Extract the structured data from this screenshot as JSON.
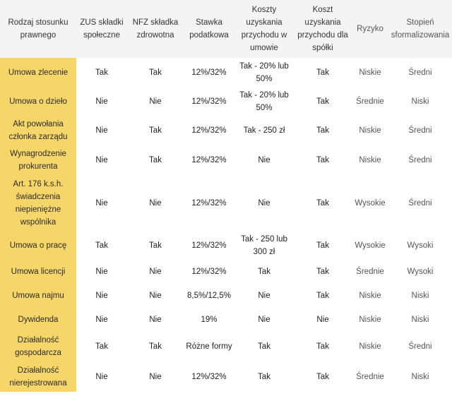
{
  "table": {
    "headers": [
      "Rodzaj stosunku prawnego",
      "ZUS składki społeczne",
      "NFZ składka zdrowotna",
      "Stawka podatkowa",
      "Koszty uzyskania przychodu w umowie",
      "Koszt uzyskania przychodu dla spółki",
      "Ryzyko",
      "Stopień sformalizowania"
    ],
    "rows": [
      [
        "Umowa zlecenie",
        "Tak",
        "Tak",
        "12%/32%",
        "Tak - 20% lub 50%",
        "Tak",
        "Niskie",
        "Średni"
      ],
      [
        "Umowa o dzieło",
        "Nie",
        "Nie",
        "12%/32%",
        "Tak - 20% lub 50%",
        "Tak",
        "Średnie",
        "Niski"
      ],
      [
        "Akt powołania członka zarządu",
        "Nie",
        "Tak",
        "12%/32%",
        "Tak - 250 zł",
        "Tak",
        "Niskie",
        "Średni"
      ],
      [
        "Wynagrodzenie prokurenta",
        "Nie",
        "Tak",
        "12%/32%",
        "Nie",
        "Tak",
        "Niskie",
        "Średni"
      ],
      [
        "Art. 176 k.s.h. świadczenia niepieniężne wspólnika",
        "Nie",
        "Nie",
        "12%/32%",
        "Nie",
        "Tak",
        "Wysokie",
        "Średni"
      ],
      [
        "Umowa o pracę",
        "Tak",
        "Tak",
        "12%/32%",
        "Tak - 250 lub 300 zł",
        "Tak",
        "Wysokie",
        "Wysoki"
      ],
      [
        "Umowa licencji",
        "Nie",
        "Nie",
        "12%/32%",
        "Tak",
        "Tak",
        "Średnie",
        "Wysoki"
      ],
      [
        "Umowa najmu",
        "Nie",
        "Nie",
        "8,5%/12,5%",
        "Nie",
        "Tak",
        "Niskie",
        "Niski"
      ],
      [
        "Dywidenda",
        "Nie",
        "Nie",
        "19%",
        "Nie",
        "Nie",
        "Niskie",
        "Niski"
      ],
      [
        "Działalność gospodarcza",
        "Tak",
        "Tak",
        "Różne formy",
        "Tak",
        "Tak",
        "Niskie",
        "Średni"
      ],
      [
        "Działalność nierejestrowana",
        "Nie",
        "Nie",
        "12%/32%",
        "Tak",
        "Tak",
        "Średnie",
        "Niski"
      ]
    ]
  },
  "colors": {
    "first_column": "#f7d669",
    "header_bg": "#f4f4f4"
  }
}
